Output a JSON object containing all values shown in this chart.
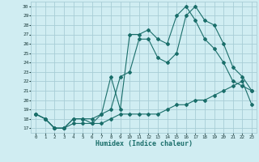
{
  "xlabel": "Humidex (Indice chaleur)",
  "background_color": "#d0edf2",
  "grid_color": "#a8cdd6",
  "line_color": "#1a6e6a",
  "xlim": [
    -0.5,
    23.5
  ],
  "ylim": [
    16.5,
    30.5
  ],
  "xticks": [
    0,
    1,
    2,
    3,
    4,
    5,
    6,
    7,
    8,
    9,
    10,
    11,
    12,
    13,
    14,
    15,
    16,
    17,
    18,
    19,
    20,
    21,
    22,
    23
  ],
  "yticks": [
    17,
    18,
    19,
    20,
    21,
    22,
    23,
    24,
    25,
    26,
    27,
    28,
    29,
    30
  ],
  "series": [
    {
      "x": [
        0,
        1,
        2,
        3,
        4,
        5,
        6,
        7,
        8,
        9,
        10,
        11,
        12,
        13,
        14,
        15,
        16,
        17,
        18,
        19,
        20,
        21,
        22,
        23
      ],
      "y": [
        18.5,
        18.0,
        17.0,
        17.0,
        17.5,
        17.5,
        17.5,
        17.5,
        18.0,
        18.5,
        18.5,
        18.5,
        18.5,
        18.5,
        19.0,
        19.5,
        19.5,
        20.0,
        20.0,
        20.5,
        21.0,
        21.5,
        22.0,
        19.5
      ]
    },
    {
      "x": [
        0,
        1,
        2,
        3,
        4,
        5,
        6,
        7,
        8,
        9,
        10,
        11,
        12,
        13,
        14,
        15,
        16,
        17,
        18,
        19,
        20,
        21,
        22,
        23
      ],
      "y": [
        18.5,
        18.0,
        17.0,
        17.0,
        18.0,
        18.0,
        18.0,
        18.5,
        19.0,
        22.5,
        23.0,
        26.5,
        26.5,
        24.5,
        24.0,
        25.0,
        29.0,
        30.0,
        28.5,
        28.0,
        26.0,
        23.5,
        22.5,
        21.0
      ]
    },
    {
      "x": [
        0,
        1,
        2,
        3,
        4,
        5,
        6,
        7,
        8,
        9,
        10,
        11,
        12,
        13,
        14,
        15,
        16,
        17,
        18,
        19,
        20,
        21,
        22,
        23
      ],
      "y": [
        18.5,
        18.0,
        17.0,
        17.0,
        18.0,
        18.0,
        17.5,
        18.5,
        22.5,
        19.0,
        27.0,
        27.0,
        27.5,
        26.5,
        26.0,
        29.0,
        30.0,
        28.5,
        26.5,
        25.5,
        24.0,
        22.0,
        21.5,
        21.0
      ]
    }
  ]
}
